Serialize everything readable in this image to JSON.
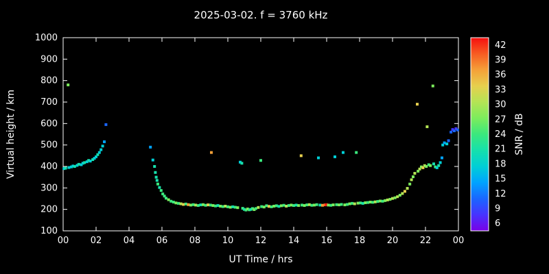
{
  "chart_data": {
    "type": "scatter",
    "title": "2025-03-02. f = 3760 kHz",
    "xlabel": "UT Time / hrs",
    "ylabel": "Virtual height / km",
    "xlim": [
      0,
      24
    ],
    "ylim": [
      100,
      1000
    ],
    "x_ticks": {
      "values": [
        0,
        2,
        4,
        6,
        8,
        10,
        12,
        14,
        16,
        18,
        20,
        22,
        24
      ],
      "labels": [
        "00",
        "02",
        "04",
        "06",
        "08",
        "10",
        "12",
        "14",
        "16",
        "18",
        "20",
        "22",
        "00"
      ]
    },
    "y_ticks": [
      100,
      200,
      300,
      400,
      500,
      600,
      700,
      800,
      900,
      1000
    ],
    "background": "#000000",
    "axis_color": "#ffffff",
    "grid": "off",
    "legend_position": "none",
    "colorbar": {
      "label": "SNR / dB",
      "ticks": [
        6,
        9,
        12,
        15,
        18,
        21,
        24,
        27,
        30,
        33,
        36,
        39,
        42
      ],
      "min": 4.5,
      "max": 43.5,
      "colors": [
        "#7a00e6",
        "#4733ff",
        "#1a66ff",
        "#00a3ff",
        "#00cfd6",
        "#16e0ac",
        "#3be87d",
        "#7cec5c",
        "#b4e455",
        "#e6cf4e",
        "#f5a038",
        "#f75c22",
        "#f50f0f"
      ]
    },
    "points_format": "[ut_time_hrs, virtual_height_km, snr_db]",
    "points": [
      [
        0.05,
        390,
        18
      ],
      [
        0.15,
        392,
        20
      ],
      [
        0.3,
        780,
        26
      ],
      [
        0.35,
        395,
        18
      ],
      [
        0.5,
        398,
        19
      ],
      [
        0.6,
        402,
        18
      ],
      [
        0.7,
        400,
        21
      ],
      [
        0.85,
        405,
        18
      ],
      [
        0.95,
        410,
        20
      ],
      [
        1.1,
        408,
        18
      ],
      [
        1.2,
        415,
        19
      ],
      [
        1.3,
        418,
        21
      ],
      [
        1.45,
        422,
        18
      ],
      [
        1.55,
        428,
        20
      ],
      [
        1.65,
        425,
        18
      ],
      [
        1.8,
        432,
        21
      ],
      [
        1.9,
        438,
        19
      ],
      [
        2.0,
        445,
        18
      ],
      [
        2.1,
        455,
        20
      ],
      [
        2.2,
        465,
        18
      ],
      [
        2.3,
        478,
        19
      ],
      [
        2.4,
        495,
        18
      ],
      [
        2.5,
        515,
        15
      ],
      [
        2.6,
        595,
        12
      ],
      [
        5.3,
        490,
        15
      ],
      [
        5.45,
        430,
        18
      ],
      [
        5.55,
        400,
        21
      ],
      [
        5.6,
        372,
        20
      ],
      [
        5.65,
        350,
        22
      ],
      [
        5.7,
        335,
        21
      ],
      [
        5.75,
        318,
        23
      ],
      [
        5.85,
        302,
        22
      ],
      [
        5.95,
        288,
        24
      ],
      [
        6.05,
        272,
        23
      ],
      [
        6.15,
        262,
        25
      ],
      [
        6.25,
        252,
        24
      ],
      [
        6.4,
        245,
        26
      ],
      [
        6.55,
        238,
        25
      ],
      [
        6.7,
        234,
        24
      ],
      [
        6.85,
        230,
        27
      ],
      [
        7.0,
        228,
        24
      ],
      [
        7.15,
        226,
        30
      ],
      [
        7.3,
        223,
        33
      ],
      [
        7.45,
        225,
        24
      ],
      [
        7.6,
        222,
        36
      ],
      [
        7.75,
        220,
        27
      ],
      [
        7.9,
        222,
        24
      ],
      [
        8.05,
        220,
        30
      ],
      [
        8.2,
        218,
        24
      ],
      [
        8.35,
        221,
        21
      ],
      [
        8.5,
        222,
        27
      ],
      [
        8.65,
        219,
        24
      ],
      [
        8.8,
        221,
        33
      ],
      [
        8.95,
        220,
        24
      ],
      [
        9.0,
        465,
        36
      ],
      [
        9.1,
        218,
        27
      ],
      [
        9.25,
        216,
        24
      ],
      [
        9.4,
        218,
        21
      ],
      [
        9.55,
        215,
        27
      ],
      [
        9.7,
        213,
        24
      ],
      [
        9.85,
        215,
        30
      ],
      [
        10.0,
        212,
        24
      ],
      [
        10.15,
        210,
        27
      ],
      [
        10.3,
        212,
        21
      ],
      [
        10.45,
        210,
        24
      ],
      [
        10.6,
        208,
        27
      ],
      [
        10.75,
        420,
        18
      ],
      [
        10.85,
        415,
        21
      ],
      [
        10.9,
        205,
        24
      ],
      [
        11.0,
        200,
        21
      ],
      [
        11.1,
        197,
        24
      ],
      [
        11.2,
        202,
        27
      ],
      [
        11.3,
        198,
        24
      ],
      [
        11.4,
        200,
        21
      ],
      [
        11.5,
        204,
        24
      ],
      [
        11.6,
        199,
        27
      ],
      [
        11.7,
        204,
        24
      ],
      [
        11.85,
        209,
        30
      ],
      [
        12.0,
        428,
        24
      ],
      [
        12.05,
        213,
        24
      ],
      [
        12.2,
        211,
        27
      ],
      [
        12.35,
        217,
        24
      ],
      [
        12.5,
        214,
        33
      ],
      [
        12.65,
        212,
        24
      ],
      [
        12.8,
        215,
        27
      ],
      [
        12.95,
        217,
        24
      ],
      [
        13.1,
        214,
        21
      ],
      [
        13.25,
        217,
        27
      ],
      [
        13.4,
        219,
        24
      ],
      [
        13.55,
        215,
        30
      ],
      [
        13.7,
        218,
        24
      ],
      [
        13.85,
        220,
        27
      ],
      [
        14.0,
        218,
        24
      ],
      [
        14.15,
        220,
        21
      ],
      [
        14.3,
        218,
        27
      ],
      [
        14.45,
        450,
        33
      ],
      [
        14.5,
        220,
        24
      ],
      [
        14.65,
        218,
        27
      ],
      [
        14.8,
        221,
        24
      ],
      [
        14.95,
        222,
        30
      ],
      [
        15.1,
        219,
        24
      ],
      [
        15.25,
        220,
        27
      ],
      [
        15.4,
        222,
        24
      ],
      [
        15.5,
        440,
        18
      ],
      [
        15.6,
        220,
        21
      ],
      [
        15.75,
        219,
        36
      ],
      [
        15.9,
        221,
        39
      ],
      [
        16.0,
        222,
        42
      ],
      [
        16.1,
        220,
        27
      ],
      [
        16.25,
        219,
        24
      ],
      [
        16.4,
        221,
        27
      ],
      [
        16.5,
        445,
        18
      ],
      [
        16.6,
        222,
        24
      ],
      [
        16.75,
        221,
        27
      ],
      [
        16.9,
        223,
        24
      ],
      [
        17.0,
        465,
        18
      ],
      [
        17.1,
        221,
        27
      ],
      [
        17.25,
        223,
        24
      ],
      [
        17.4,
        226,
        27
      ],
      [
        17.55,
        228,
        24
      ],
      [
        17.7,
        226,
        30
      ],
      [
        17.8,
        465,
        24
      ],
      [
        17.9,
        229,
        27
      ],
      [
        18.05,
        230,
        24
      ],
      [
        18.2,
        228,
        21
      ],
      [
        18.35,
        231,
        27
      ],
      [
        18.5,
        232,
        24
      ],
      [
        18.65,
        234,
        27
      ],
      [
        18.8,
        233,
        24
      ],
      [
        18.95,
        235,
        30
      ],
      [
        19.1,
        237,
        24
      ],
      [
        19.25,
        239,
        27
      ],
      [
        19.4,
        238,
        24
      ],
      [
        19.55,
        241,
        27
      ],
      [
        19.7,
        244,
        30
      ],
      [
        19.85,
        247,
        27
      ],
      [
        20.0,
        251,
        30
      ],
      [
        20.15,
        254,
        27
      ],
      [
        20.3,
        259,
        30
      ],
      [
        20.45,
        266,
        27
      ],
      [
        20.6,
        274,
        30
      ],
      [
        20.75,
        284,
        33
      ],
      [
        20.9,
        298,
        30
      ],
      [
        21.05,
        318,
        27
      ],
      [
        21.15,
        338,
        30
      ],
      [
        21.25,
        352,
        27
      ],
      [
        21.35,
        368,
        30
      ],
      [
        21.5,
        690,
        33
      ],
      [
        21.55,
        378,
        27
      ],
      [
        21.65,
        388,
        30
      ],
      [
        21.75,
        398,
        27
      ],
      [
        21.85,
        394,
        33
      ],
      [
        21.95,
        404,
        30
      ],
      [
        22.05,
        400,
        27
      ],
      [
        22.1,
        585,
        30
      ],
      [
        22.2,
        408,
        24
      ],
      [
        22.3,
        404,
        27
      ],
      [
        22.45,
        775,
        27
      ],
      [
        22.5,
        412,
        21
      ],
      [
        22.6,
        398,
        24
      ],
      [
        22.7,
        394,
        18
      ],
      [
        22.8,
        404,
        21
      ],
      [
        22.9,
        418,
        18
      ],
      [
        23.0,
        440,
        15
      ],
      [
        23.05,
        500,
        18
      ],
      [
        23.15,
        510,
        15
      ],
      [
        23.3,
        505,
        18
      ],
      [
        23.4,
        520,
        12
      ],
      [
        23.55,
        560,
        12
      ],
      [
        23.65,
        572,
        9
      ],
      [
        23.75,
        566,
        12
      ],
      [
        23.85,
        576,
        9
      ],
      [
        23.95,
        570,
        12
      ]
    ]
  }
}
